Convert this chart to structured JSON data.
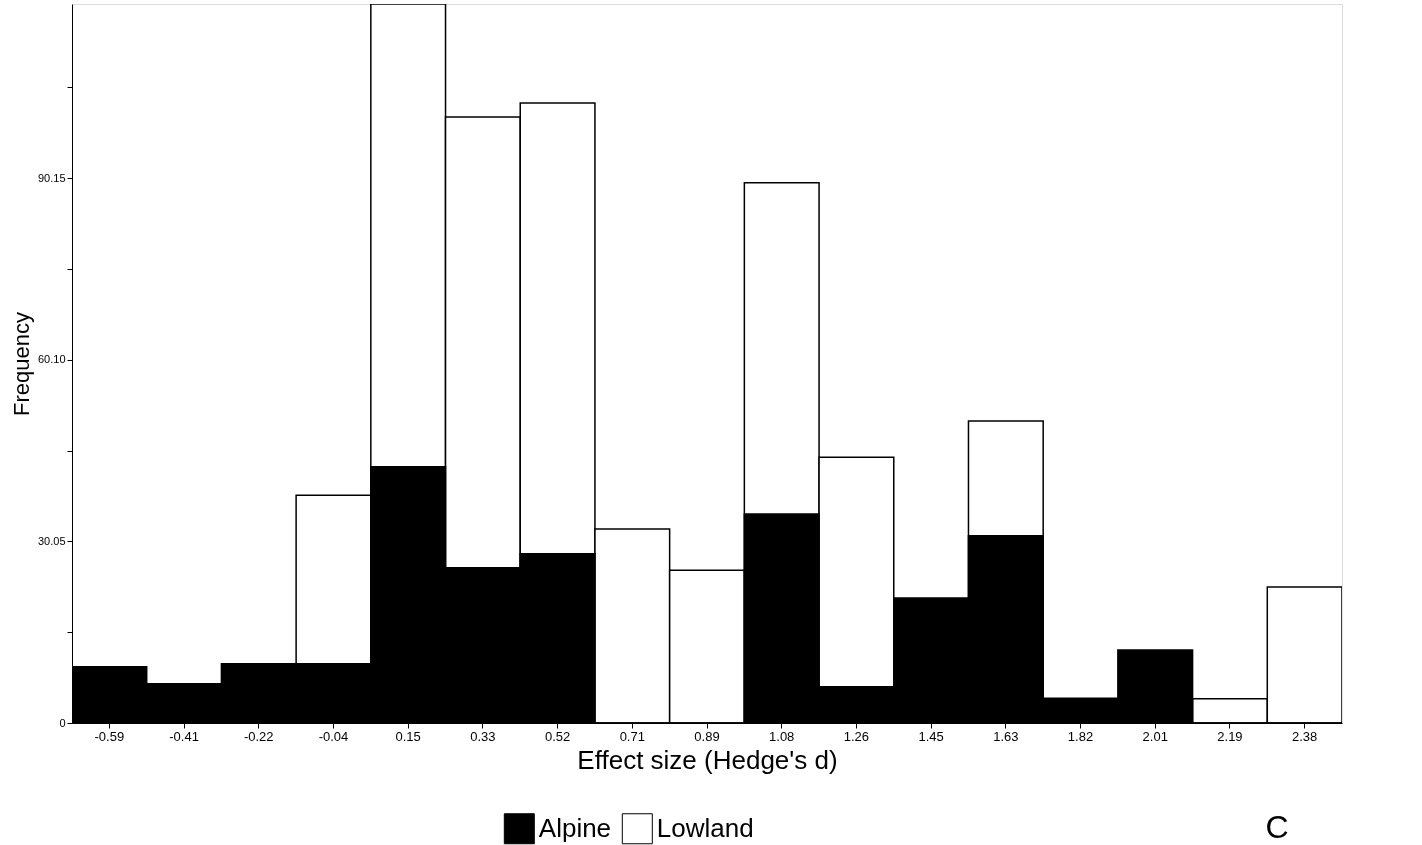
{
  "chart_data": {
    "type": "bar",
    "xlabel": "Effect size (Hedge's d)",
    "ylabel": "Frequency",
    "categories": [
      "-0.59",
      "-0.41",
      "-0.22",
      "-0.04",
      "0.15",
      "0.33",
      "0.52",
      "0.71",
      "0.89",
      "1.08",
      "1.26",
      "1.45",
      "1.63",
      "1.82",
      "2.01",
      "2.19",
      "2.38"
    ],
    "series": [
      {
        "name": "Alpine",
        "color": "#000000",
        "values": [
          9.3,
          6.5,
          9.8,
          9.8,
          42.4,
          25.7,
          28.0,
          0,
          0,
          34.6,
          6.0,
          20.7,
          31.0,
          4.1,
          12.1,
          0,
          0
        ]
      },
      {
        "name": "Lowland",
        "color": "#ffffff",
        "values": [
          null,
          null,
          null,
          37.7,
          119,
          100.3,
          102.6,
          32.1,
          25.3,
          89.4,
          44.0,
          null,
          50.0,
          null,
          null,
          4.0,
          22.5
        ]
      }
    ],
    "ylim": [
      0,
      119
    ],
    "yticks": [
      0,
      {
        "value": 15.025,
        "label": null
      },
      {
        "value": 30.05,
        "label": "30.05"
      },
      {
        "value": 45.075,
        "label": null
      },
      {
        "value": 60.1,
        "label": "60.10"
      },
      {
        "value": 75.125,
        "label": null
      },
      {
        "value": 90.15,
        "label": "90.15"
      },
      {
        "value": 105.2,
        "label": null
      }
    ],
    "grid": false,
    "legend": "bottom",
    "annotations": [
      "C"
    ]
  }
}
